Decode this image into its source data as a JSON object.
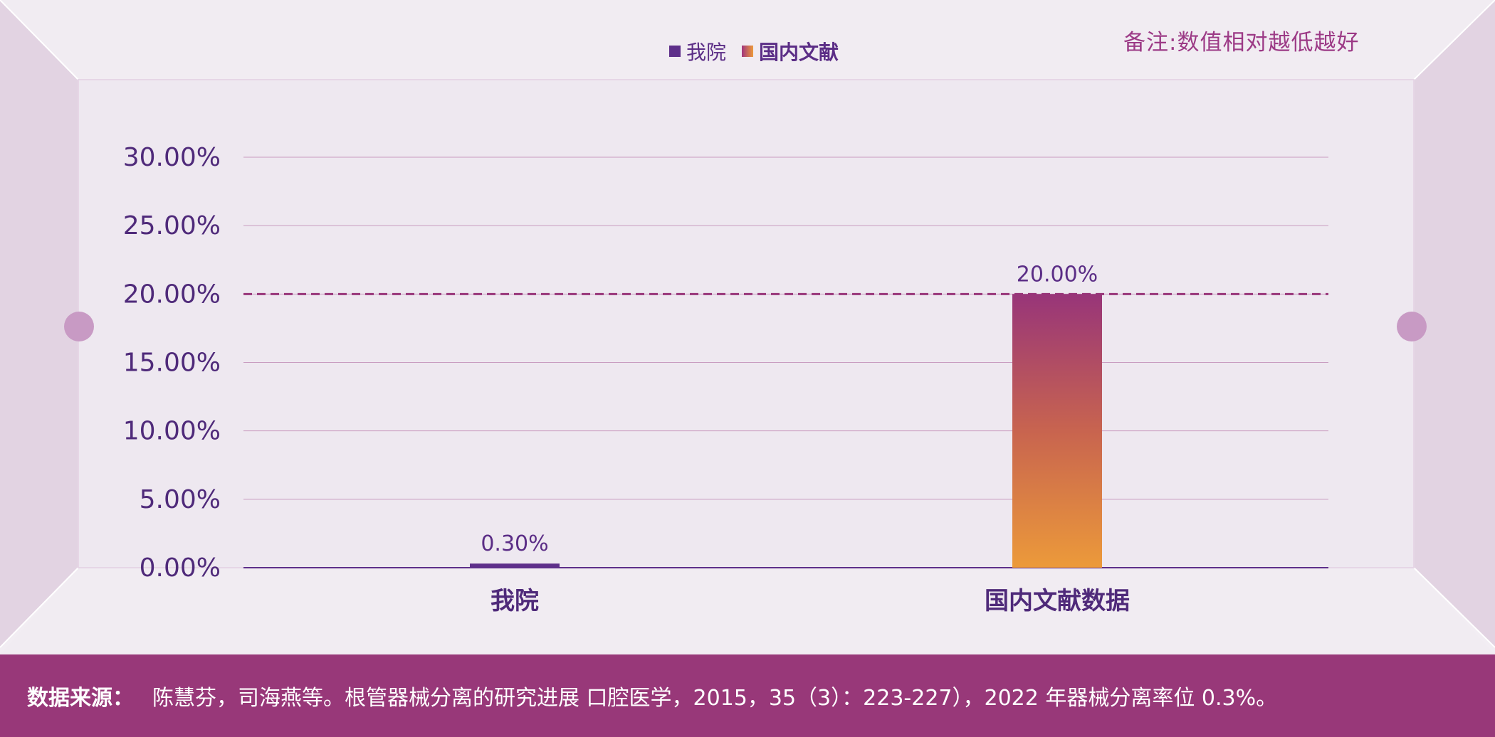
{
  "note": "备注:数值相对越低越好",
  "legend": [
    {
      "label": "我院"
    },
    {
      "label": "国内文献"
    }
  ],
  "footer": {
    "label": "数据来源：",
    "text": "陈慧芬，司海燕等。根管器械分离的研究进展 口腔医学，2015，35（3）：223-227），2022 年器械分离率位 0.3%。"
  },
  "colors": {
    "primary_purple": "#5e2f8a",
    "magenta": "#983879",
    "orange": "#ec9a3a",
    "text_purple": "#4f2a7a"
  },
  "chart_data": {
    "type": "bar",
    "categories": [
      "我院",
      "国内文献数据"
    ],
    "values": [
      0.3,
      20
    ],
    "value_labels": [
      "0.30%",
      "20.00%"
    ],
    "yticks": [
      "0.00%",
      "5.00%",
      "10.00%",
      "15.00%",
      "20.00%",
      "25.00%",
      "30.00%"
    ],
    "ylim": [
      0,
      30
    ],
    "reference_line": 20,
    "grid": true,
    "legend_position": "top-center"
  }
}
